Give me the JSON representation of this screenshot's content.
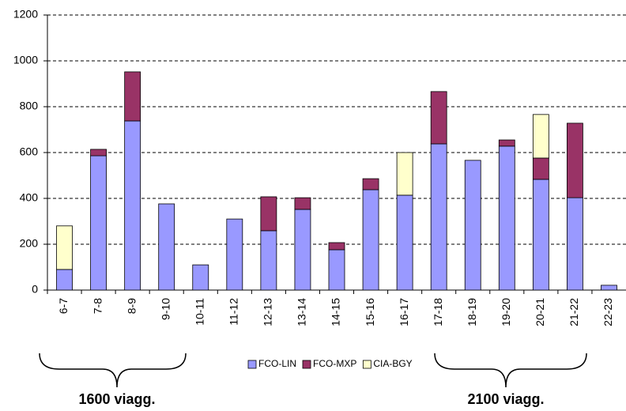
{
  "chart_data": {
    "type": "stacked_bar",
    "categories": [
      "6-7",
      "7-8",
      "8-9",
      "9-10",
      "10-11",
      "11-12",
      "12-13",
      "13-14",
      "14-15",
      "15-16",
      "16-17",
      "17-18",
      "18-19",
      "19-20",
      "20-21",
      "21-22",
      "22-23"
    ],
    "series": [
      {
        "name": "FCO-LIN",
        "color": "#9999ff",
        "values": [
          90,
          586,
          738,
          376,
          110,
          310,
          259,
          352,
          176,
          438,
          414,
          638,
          566,
          628,
          483,
          403,
          21
        ]
      },
      {
        "name": "FCO-MXP",
        "color": "#993366",
        "values": [
          0,
          28,
          214,
          0,
          0,
          0,
          148,
          51,
          31,
          48,
          0,
          228,
          0,
          27,
          93,
          325,
          0
        ]
      },
      {
        "name": "CIA-BGY",
        "color": "#ffffcc",
        "values": [
          190,
          0,
          0,
          0,
          0,
          0,
          0,
          0,
          0,
          0,
          186,
          0,
          0,
          0,
          190,
          0,
          0
        ]
      }
    ],
    "ylim": [
      0,
      1200
    ],
    "yticks": [
      0,
      200,
      400,
      600,
      800,
      1000,
      1200
    ],
    "grid": true,
    "legend": "bottom",
    "annotations": [
      "1600 viagg.",
      "2100 viagg."
    ]
  }
}
